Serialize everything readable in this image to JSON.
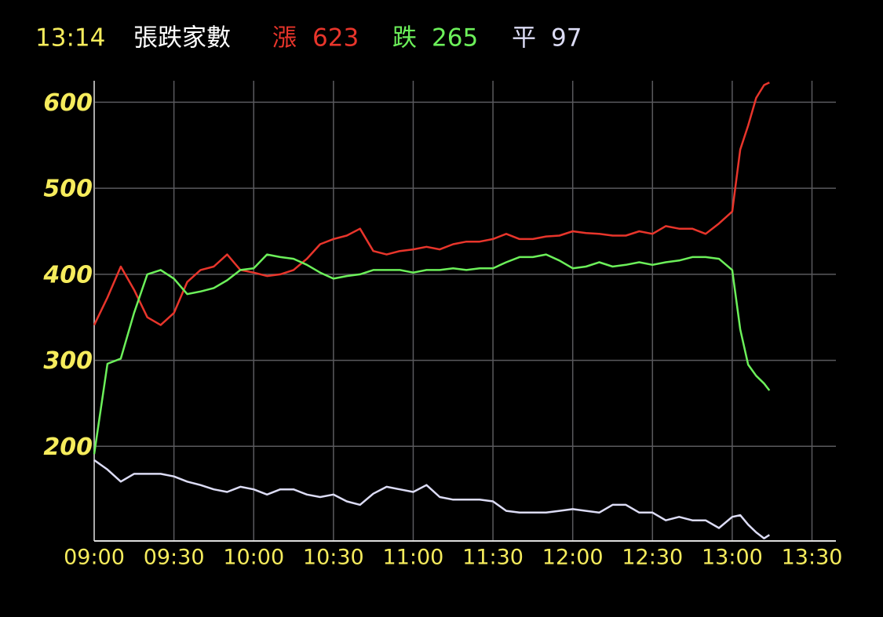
{
  "chart_data": {
    "type": "line",
    "title": "張跌家數",
    "x": [
      "09:00",
      "09:05",
      "09:10",
      "09:15",
      "09:20",
      "09:25",
      "09:30",
      "09:35",
      "09:40",
      "09:45",
      "09:50",
      "09:55",
      "10:00",
      "10:05",
      "10:10",
      "10:15",
      "10:20",
      "10:25",
      "10:30",
      "10:35",
      "10:40",
      "10:45",
      "10:50",
      "10:55",
      "11:00",
      "11:05",
      "11:10",
      "11:15",
      "11:20",
      "11:25",
      "11:30",
      "11:35",
      "11:40",
      "11:45",
      "11:50",
      "11:55",
      "12:00",
      "12:05",
      "12:10",
      "12:15",
      "12:20",
      "12:25",
      "12:30",
      "12:35",
      "12:40",
      "12:45",
      "12:50",
      "12:55",
      "13:00",
      "13:03",
      "13:06",
      "13:09",
      "13:12",
      "13:14"
    ],
    "series": [
      {
        "name": "漲",
        "color": "#e8352b",
        "values": [
          341,
          373,
          409,
          382,
          350,
          341,
          355,
          391,
          405,
          409,
          423,
          405,
          402,
          398,
          400,
          405,
          418,
          435,
          441,
          445,
          453,
          427,
          423,
          427,
          429,
          432,
          429,
          435,
          438,
          438,
          441,
          447,
          441,
          441,
          444,
          445,
          450,
          448,
          447,
          445,
          445,
          450,
          447,
          456,
          453,
          453,
          447,
          459,
          473,
          545,
          573,
          605,
          620,
          623
        ]
      },
      {
        "name": "跌",
        "color": "#6cf05a",
        "values": [
          191,
          296,
          302,
          355,
          400,
          405,
          395,
          377,
          380,
          384,
          393,
          405,
          407,
          423,
          420,
          418,
          411,
          402,
          395,
          398,
          400,
          405,
          405,
          405,
          402,
          405,
          405,
          407,
          405,
          407,
          407,
          414,
          420,
          420,
          423,
          416,
          407,
          409,
          414,
          409,
          411,
          414,
          411,
          414,
          416,
          420,
          420,
          418,
          405,
          336,
          295,
          282,
          273,
          265
        ]
      },
      {
        "name": "平",
        "color": "#dcdcf5",
        "values": [
          184,
          173,
          159,
          168,
          168,
          168,
          165,
          159,
          155,
          150,
          147,
          153,
          150,
          144,
          150,
          150,
          144,
          141,
          144,
          136,
          132,
          145,
          153,
          150,
          147,
          155,
          141,
          138,
          138,
          138,
          136,
          125,
          123,
          123,
          123,
          125,
          127,
          125,
          123,
          132,
          132,
          123,
          123,
          114,
          118,
          114,
          114,
          105,
          118,
          120,
          109,
          100,
          93,
          97
        ]
      }
    ],
    "xlim": [
      "09:00",
      "13:39"
    ],
    "xticks": [
      "09:00",
      "09:30",
      "10:00",
      "10:30",
      "11:00",
      "11:30",
      "12:00",
      "12:30",
      "13:00",
      "13:30"
    ],
    "ylim": [
      90,
      625
    ],
    "yticks": [
      200,
      300,
      400,
      500,
      600
    ],
    "grid": true
  }
}
